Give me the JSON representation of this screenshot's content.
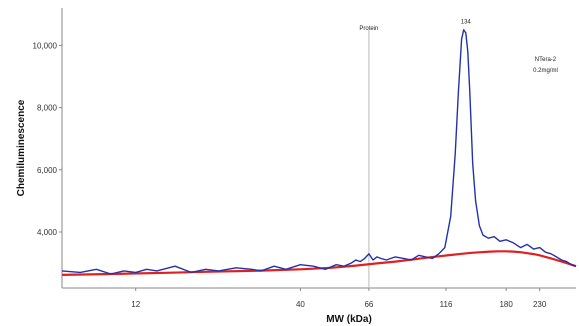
{
  "chart_data": {
    "type": "line",
    "title": "",
    "xlabel": "MW (kDa)",
    "ylabel": "Chemiluminescence",
    "x_scale": "log",
    "xlim": [
      7,
      300
    ],
    "ylim": [
      2200,
      11200
    ],
    "x_ticks": [
      12,
      40,
      66,
      116,
      180,
      230
    ],
    "x_tick_labels": [
      "12",
      "40",
      "66",
      "116",
      "180",
      "230"
    ],
    "y_ticks": [
      4000,
      6000,
      8000,
      10000
    ],
    "y_tick_labels": [
      "4,000",
      "6,000",
      "8,000",
      "10,000"
    ],
    "grid": false,
    "legend": "none",
    "annotations": [
      {
        "text": "Protein",
        "x": 66,
        "y": 10500,
        "vline": true
      },
      {
        "text": "134",
        "x": 134,
        "y": 10700
      },
      {
        "text": "NTera-2",
        "x": 240,
        "y": 9500
      },
      {
        "text": "0.2mg/ml",
        "x": 240,
        "y": 9150
      }
    ],
    "series": [
      {
        "color": "#2233aa",
        "x": [
          7,
          8,
          9,
          10,
          11,
          12,
          13,
          14,
          16,
          18,
          20,
          22,
          25,
          28,
          30,
          33,
          36,
          40,
          44,
          48,
          52,
          55,
          58,
          60,
          62,
          64,
          66,
          68,
          70,
          72,
          75,
          80,
          85,
          90,
          95,
          100,
          105,
          110,
          115,
          120,
          124,
          127,
          130,
          132,
          134,
          136,
          138,
          141,
          144,
          148,
          152,
          158,
          165,
          172,
          180,
          190,
          200,
          210,
          220,
          230,
          240,
          250,
          260,
          270,
          280,
          290,
          300
        ],
        "values": [
          2750,
          2700,
          2800,
          2650,
          2750,
          2700,
          2800,
          2750,
          2900,
          2700,
          2800,
          2750,
          2850,
          2800,
          2750,
          2900,
          2800,
          2950,
          2900,
          2800,
          2950,
          2900,
          3000,
          3100,
          3050,
          3150,
          3300,
          3100,
          3200,
          3150,
          3100,
          3200,
          3150,
          3100,
          3250,
          3200,
          3150,
          3300,
          3500,
          4500,
          6500,
          8500,
          10200,
          10500,
          10400,
          9800,
          8500,
          6200,
          5000,
          4200,
          3900,
          3800,
          3850,
          3700,
          3750,
          3650,
          3500,
          3600,
          3450,
          3500,
          3350,
          3300,
          3200,
          3100,
          3050,
          2950,
          2900
        ]
      },
      {
        "color": "#e02020",
        "x": [
          7,
          10,
          15,
          20,
          30,
          40,
          50,
          60,
          70,
          80,
          90,
          100,
          110,
          120,
          130,
          140,
          150,
          160,
          170,
          180,
          190,
          200,
          210,
          220,
          230,
          240,
          250,
          260,
          270,
          280,
          290,
          300
        ],
        "values": [
          2620,
          2650,
          2690,
          2720,
          2760,
          2800,
          2850,
          2920,
          2990,
          3050,
          3110,
          3170,
          3220,
          3260,
          3300,
          3330,
          3350,
          3370,
          3380,
          3380,
          3370,
          3350,
          3320,
          3290,
          3250,
          3200,
          3150,
          3100,
          3050,
          3000,
          2950,
          2900
        ]
      }
    ]
  }
}
